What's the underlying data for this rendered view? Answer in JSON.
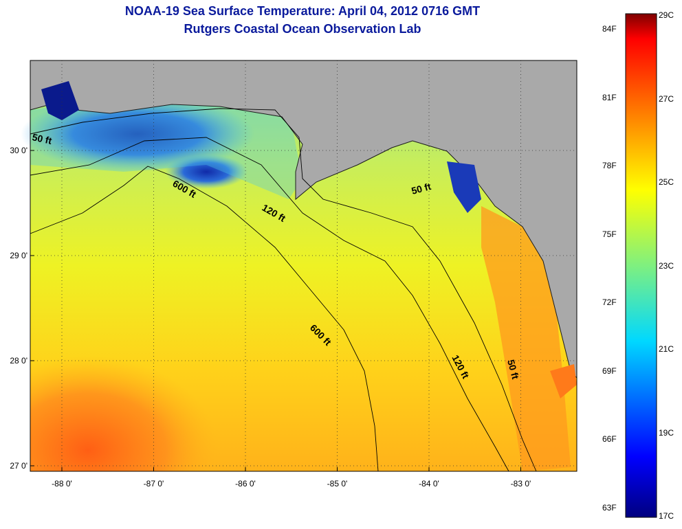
{
  "title": "NOAA-19 Sea Surface Temperature:  April 04, 2012 0716 GMT",
  "subtitle": "Rutgers Coastal Ocean Observation Lab",
  "lon_ticks": [
    {
      "value": -88,
      "label": "-88 0'"
    },
    {
      "value": -87,
      "label": "-87 0'"
    },
    {
      "value": -86,
      "label": "-86 0'"
    },
    {
      "value": -85,
      "label": "-85 0'"
    },
    {
      "value": -84,
      "label": "-84 0'"
    },
    {
      "value": -83,
      "label": "-83 0'"
    }
  ],
  "lat_ticks": [
    {
      "value": 30,
      "label": "30 0'"
    },
    {
      "value": 29,
      "label": "29 0'"
    },
    {
      "value": 28,
      "label": "28 0'"
    },
    {
      "value": 27,
      "label": "27 0'"
    }
  ],
  "depth_labels": {
    "d50_west": "50 ft",
    "d50_east": "50 ft",
    "d50_south": "50 ft",
    "d120_north": "120 ft",
    "d120_south": "120 ft",
    "d600_north": "600 ft",
    "d600_south": "600 ft"
  },
  "colorbar": {
    "fahrenheit": [
      "84F",
      "81F",
      "78F",
      "75F",
      "72F",
      "69F",
      "66F",
      "63F"
    ],
    "celsius": [
      "29C",
      "27C",
      "25C",
      "23C",
      "21C",
      "19C",
      "17C"
    ]
  },
  "colors": {
    "land": "#a9a9a9",
    "title_blue": "#0a1a9c",
    "sst_warm": "#ff7a1a",
    "sst_mid": "#f0f020",
    "sst_cool": "#7ee0a0",
    "sst_cold": "#1030c0"
  }
}
